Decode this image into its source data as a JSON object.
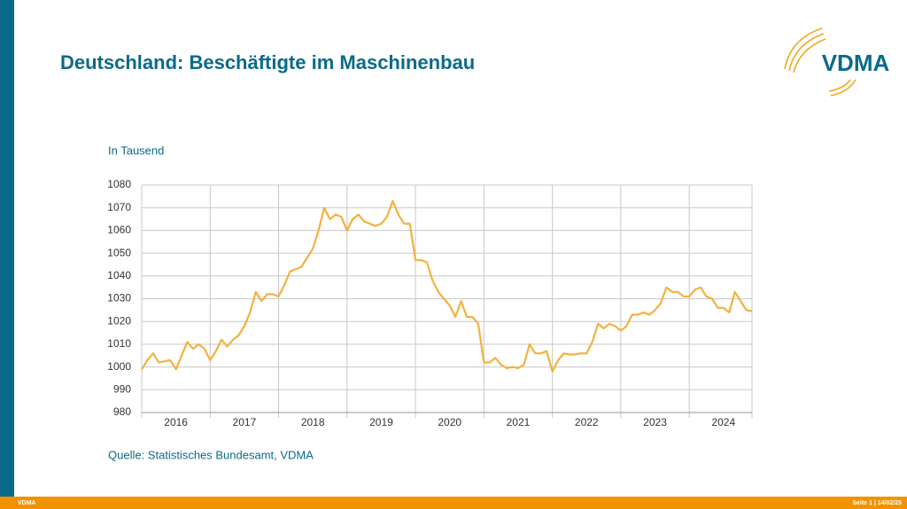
{
  "chart_data": {
    "type": "line",
    "title": "Deutschland: Beschäftigte im Maschinenbau",
    "y_label": "In Tausend",
    "source": "Quelle: Statistisches Bundesamt, VDMA",
    "categories": [
      null,
      null,
      null,
      null,
      null,
      null,
      "2016",
      null,
      null,
      null,
      null,
      null,
      null,
      null,
      null,
      null,
      null,
      null,
      "2017",
      null,
      null,
      null,
      null,
      null,
      null,
      null,
      null,
      null,
      null,
      null,
      "2018",
      null,
      null,
      null,
      null,
      null,
      null,
      null,
      null,
      null,
      null,
      null,
      "2019",
      null,
      null,
      null,
      null,
      null,
      null,
      null,
      null,
      null,
      null,
      null,
      "2020",
      null,
      null,
      null,
      null,
      null,
      null,
      null,
      null,
      null,
      null,
      null,
      "2021",
      null,
      null,
      null,
      null,
      null,
      null,
      null,
      null,
      null,
      null,
      null,
      "2022",
      null,
      null,
      null,
      null,
      null,
      null,
      null,
      null,
      null,
      null,
      null,
      "2023",
      null,
      null,
      null,
      null,
      null,
      null,
      null,
      null,
      null,
      null,
      null,
      "2024",
      null,
      null,
      null,
      null,
      null
    ],
    "series": [
      {
        "name": "Beschäftigte",
        "color": "#f4b13e",
        "values": [
          999,
          1003,
          1006,
          1002,
          1002.5,
          1003,
          999,
          1005,
          1011,
          1008,
          1010,
          1008,
          1003,
          1007,
          1012,
          1009,
          1012,
          1014,
          1018,
          1024,
          1033,
          1029,
          1032,
          1032,
          1031,
          1036,
          1042,
          1043,
          1044,
          1048,
          1052,
          1060,
          1070,
          1065,
          1067,
          1066,
          1060,
          1065,
          1067,
          1064,
          1063,
          1062,
          1063,
          1066,
          1073,
          1067,
          1063,
          1063,
          1047,
          1047,
          1046,
          1038,
          1033,
          1030,
          1027,
          1022,
          1029,
          1022,
          1022,
          1019,
          1002,
          1002,
          1004,
          1001,
          999.5,
          1000,
          999.5,
          1001,
          1010,
          1006,
          1006,
          1007,
          998,
          1003,
          1006,
          1005.5,
          1005.5,
          1006,
          1006,
          1011,
          1019,
          1017,
          1019,
          1018,
          1016,
          1018,
          1023,
          1023,
          1024,
          1023,
          1025,
          1028,
          1035,
          1033,
          1033,
          1031,
          1031,
          1034,
          1035,
          1031,
          1030,
          1026,
          1026,
          1024,
          1033,
          1029,
          1025,
          1024.5
        ]
      }
    ],
    "ylim": [
      980,
      1080
    ],
    "yticks": [
      980,
      990,
      1000,
      1010,
      1020,
      1030,
      1040,
      1050,
      1060,
      1070,
      1080
    ],
    "grid": true
  },
  "slide": {
    "logo": "VDMA",
    "footer_left": "VDMA",
    "footer_right": "Seite 1 | 14/02/25"
  }
}
